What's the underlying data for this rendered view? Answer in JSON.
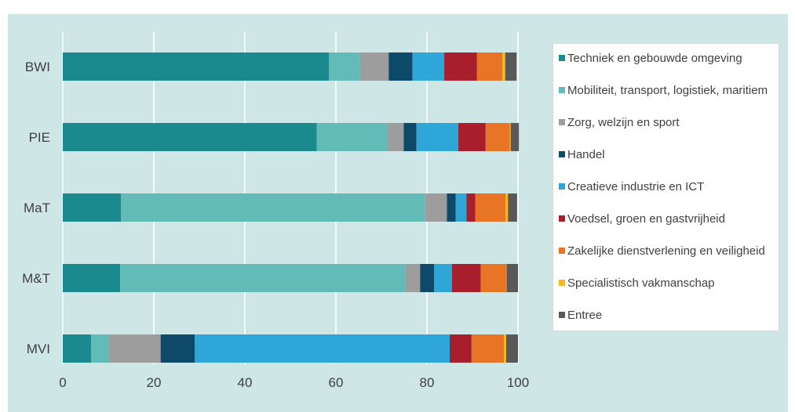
{
  "header": {
    "caption": ""
  },
  "chart_data": {
    "type": "bar",
    "orientation": "horizontal",
    "stacked": true,
    "title": "",
    "xlabel": "",
    "ylabel": "",
    "xlim": [
      0,
      100
    ],
    "x_ticks": [
      0,
      20,
      40,
      60,
      80,
      100
    ],
    "grid": "vertical",
    "legend_position": "right",
    "categories": [
      "BWI",
      "PIE",
      "MaT",
      "M&T",
      "MVI"
    ],
    "series": [
      {
        "name": "Techniek en gebouwde omgeving",
        "color": "#1a8a8e",
        "values": [
          58.5,
          55.8,
          12.8,
          12.6,
          6.2
        ]
      },
      {
        "name": "Mobiliteit, transport, logistiek, maritiem",
        "color": "#63bbb8",
        "values": [
          6.8,
          15.5,
          66.8,
          62.7,
          3.9
        ]
      },
      {
        "name": "Zorg, welzijn en sport",
        "color": "#9d9d9d",
        "values": [
          6.3,
          3.6,
          4.8,
          3.2,
          11.4
        ]
      },
      {
        "name": "Handel",
        "color": "#0d4a6a",
        "values": [
          5.2,
          2.8,
          1.9,
          3.1,
          7.5
        ]
      },
      {
        "name": "Creatieve industrie en ICT",
        "color": "#2ea6d7",
        "values": [
          7.0,
          9.2,
          2.4,
          3.9,
          56.0
        ]
      },
      {
        "name": "Voedsel, groen en gastvrijheid",
        "color": "#a91e2c",
        "values": [
          7.2,
          6.0,
          1.9,
          6.3,
          4.8
        ]
      },
      {
        "name": "Zakelijke dienstverlening en veiligheid",
        "color": "#e87425",
        "values": [
          5.6,
          5.3,
          6.7,
          5.6,
          7.1
        ]
      },
      {
        "name": "Specialistisch vakmanschap",
        "color": "#f7b71d",
        "values": [
          0.6,
          0.2,
          0.5,
          0.1,
          0.5
        ]
      },
      {
        "name": "Entree",
        "color": "#595959",
        "values": [
          2.5,
          1.8,
          2.0,
          2.5,
          2.6
        ]
      }
    ]
  }
}
